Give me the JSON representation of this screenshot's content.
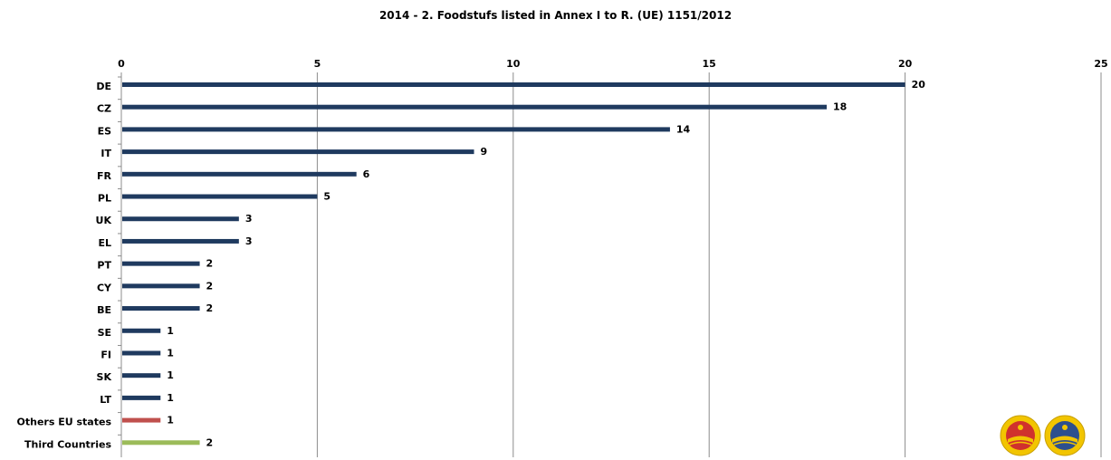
{
  "chart_data": {
    "type": "bar",
    "orientation": "horizontal",
    "title": "2014 - 2. Foodstufs listed in Annex I to R. (UE) 1151/2012",
    "xlim": [
      0,
      25
    ],
    "x_ticks": [
      0,
      5,
      10,
      15,
      20,
      25
    ],
    "grid": true,
    "categories": [
      "DE",
      "CZ",
      "ES",
      "IT",
      "FR",
      "PL",
      "UK",
      "EL",
      "PT",
      "CY",
      "BE",
      "SE",
      "FI",
      "SK",
      "LT",
      "Others EU states",
      "Third Countries"
    ],
    "values": [
      20,
      18,
      14,
      9,
      6,
      5,
      3,
      3,
      2,
      2,
      2,
      1,
      1,
      1,
      1,
      1,
      2
    ],
    "bar_colors": [
      "#1f3a5f",
      "#1f3a5f",
      "#1f3a5f",
      "#1f3a5f",
      "#1f3a5f",
      "#1f3a5f",
      "#1f3a5f",
      "#1f3a5f",
      "#1f3a5f",
      "#1f3a5f",
      "#1f3a5f",
      "#1f3a5f",
      "#1f3a5f",
      "#1f3a5f",
      "#1f3a5f",
      "#c0504d",
      "#9bbb59"
    ]
  },
  "logos": [
    "pdo-seal-icon",
    "pgi-seal-icon"
  ]
}
